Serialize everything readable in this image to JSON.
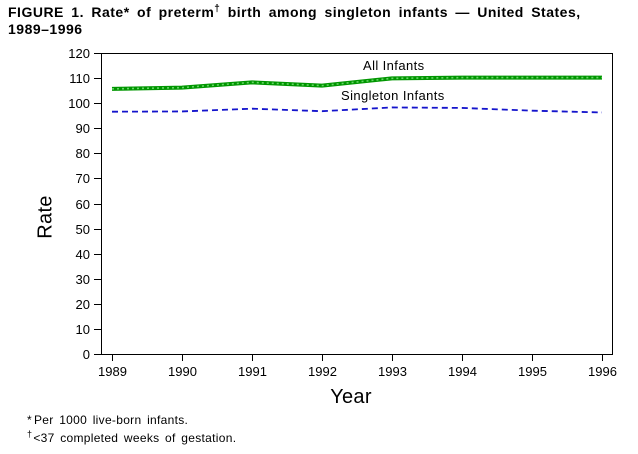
{
  "title": {
    "line1_pre_sup": "FIGURE 1. Rate* of preterm",
    "line1_sup": "†",
    "line1_post_sup": " birth among singleton infants — United States,",
    "line2": "1989–1996"
  },
  "footnotes": [
    {
      "symbol": "*",
      "text": "Per 1000 live-born infants."
    },
    {
      "symbol": "†",
      "text": "<37 completed weeks of gestation."
    }
  ],
  "chart_data": {
    "type": "line",
    "title": "FIGURE 1. Rate* of preterm† birth among singleton infants — United States, 1989–1996",
    "xlabel": "Year",
    "ylabel": "Rate",
    "x": [
      1989,
      1990,
      1991,
      1992,
      1993,
      1994,
      1995,
      1996
    ],
    "xticks": [
      1989,
      1990,
      1991,
      1992,
      1993,
      1994,
      1995,
      1996
    ],
    "ylim": [
      0,
      120
    ],
    "ytick_step": 10,
    "grid": false,
    "legend": "inline-labels",
    "axis_color": "#000000",
    "series": [
      {
        "name": "All Infants",
        "color": "#009600",
        "texture_color": "#66d466",
        "style": "solid-thick-dotted-texture",
        "values": [
          105.7,
          106.2,
          108.3,
          107.0,
          109.9,
          110.2,
          110.2,
          110.2
        ]
      },
      {
        "name": "Singleton Infants",
        "color": "#1414cc",
        "style": "dashed",
        "values": [
          96.6,
          96.7,
          97.8,
          96.8,
          98.3,
          98.1,
          97.0,
          96.3
        ]
      }
    ]
  }
}
